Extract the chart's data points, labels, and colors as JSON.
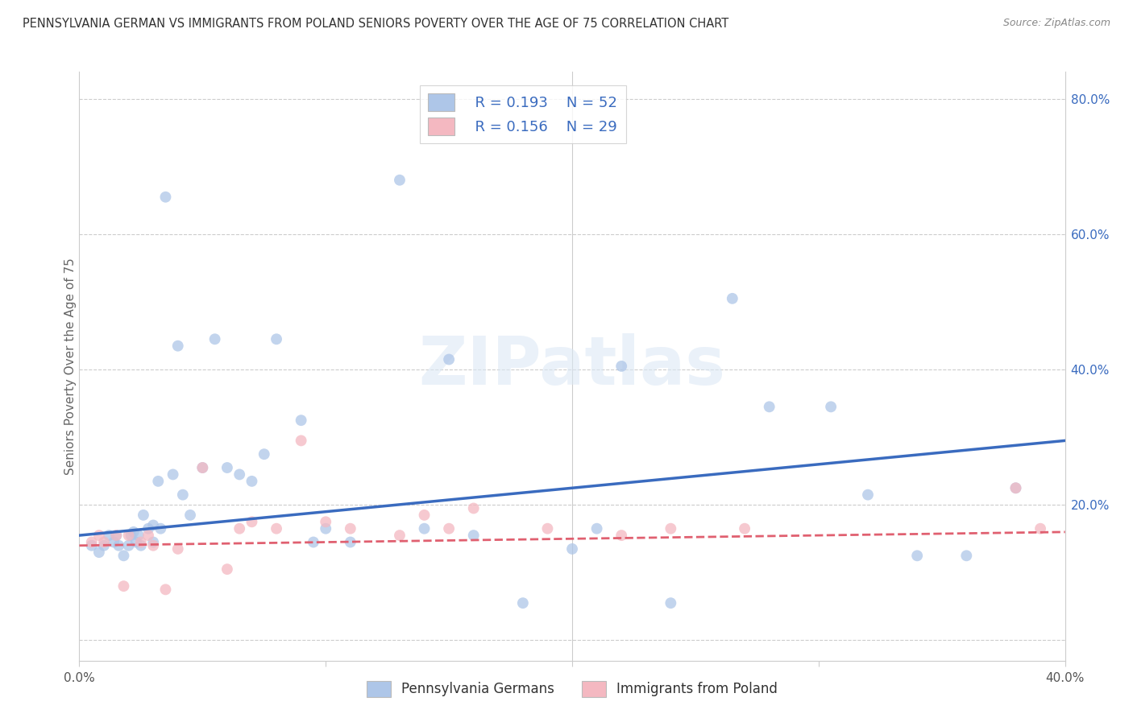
{
  "title": "PENNSYLVANIA GERMAN VS IMMIGRANTS FROM POLAND SENIORS POVERTY OVER THE AGE OF 75 CORRELATION CHART",
  "source": "Source: ZipAtlas.com",
  "ylabel": "Seniors Poverty Over the Age of 75",
  "xmin": 0.0,
  "xmax": 0.4,
  "ymin": -0.03,
  "ymax": 0.84,
  "legend_r1": "R = 0.193",
  "legend_n1": "N = 52",
  "legend_r2": "R = 0.156",
  "legend_n2": "N = 29",
  "blue_scatter_x": [
    0.005,
    0.008,
    0.01,
    0.012,
    0.014,
    0.015,
    0.016,
    0.018,
    0.02,
    0.021,
    0.022,
    0.023,
    0.024,
    0.025,
    0.026,
    0.028,
    0.03,
    0.03,
    0.032,
    0.033,
    0.035,
    0.038,
    0.04,
    0.042,
    0.045,
    0.05,
    0.055,
    0.06,
    0.065,
    0.07,
    0.075,
    0.08,
    0.09,
    0.095,
    0.1,
    0.11,
    0.13,
    0.14,
    0.15,
    0.16,
    0.18,
    0.2,
    0.21,
    0.22,
    0.24,
    0.265,
    0.28,
    0.305,
    0.32,
    0.34,
    0.36,
    0.38
  ],
  "blue_scatter_y": [
    0.14,
    0.13,
    0.14,
    0.155,
    0.145,
    0.155,
    0.14,
    0.125,
    0.14,
    0.155,
    0.16,
    0.145,
    0.155,
    0.14,
    0.185,
    0.165,
    0.17,
    0.145,
    0.235,
    0.165,
    0.655,
    0.245,
    0.435,
    0.215,
    0.185,
    0.255,
    0.445,
    0.255,
    0.245,
    0.235,
    0.275,
    0.445,
    0.325,
    0.145,
    0.165,
    0.145,
    0.68,
    0.165,
    0.415,
    0.155,
    0.055,
    0.135,
    0.165,
    0.405,
    0.055,
    0.505,
    0.345,
    0.345,
    0.215,
    0.125,
    0.125,
    0.225
  ],
  "pink_scatter_x": [
    0.005,
    0.008,
    0.01,
    0.015,
    0.018,
    0.02,
    0.025,
    0.028,
    0.03,
    0.035,
    0.04,
    0.05,
    0.06,
    0.065,
    0.07,
    0.08,
    0.09,
    0.1,
    0.11,
    0.13,
    0.14,
    0.15,
    0.16,
    0.19,
    0.22,
    0.24,
    0.27,
    0.38,
    0.39
  ],
  "pink_scatter_y": [
    0.145,
    0.155,
    0.145,
    0.155,
    0.08,
    0.155,
    0.145,
    0.155,
    0.14,
    0.075,
    0.135,
    0.255,
    0.105,
    0.165,
    0.175,
    0.165,
    0.295,
    0.175,
    0.165,
    0.155,
    0.185,
    0.165,
    0.195,
    0.165,
    0.155,
    0.165,
    0.165,
    0.225,
    0.165
  ],
  "blue_line_x": [
    0.0,
    0.4
  ],
  "blue_line_y": [
    0.155,
    0.295
  ],
  "pink_line_x": [
    0.0,
    0.4
  ],
  "pink_line_y": [
    0.14,
    0.16
  ],
  "blue_color": "#aec6e8",
  "pink_color": "#f4b8c1",
  "blue_line_color": "#3a6bbf",
  "pink_line_color": "#e06070",
  "scatter_size": 100,
  "scatter_alpha": 0.75,
  "legend_label1": "Pennsylvania Germans",
  "legend_label2": "Immigrants from Poland",
  "watermark": "ZIPatlas",
  "right_ytick_vals": [
    0.0,
    0.2,
    0.4,
    0.6,
    0.8
  ],
  "right_ytick_labels": [
    "",
    "20.0%",
    "40.0%",
    "60.0%",
    "80.0%"
  ]
}
